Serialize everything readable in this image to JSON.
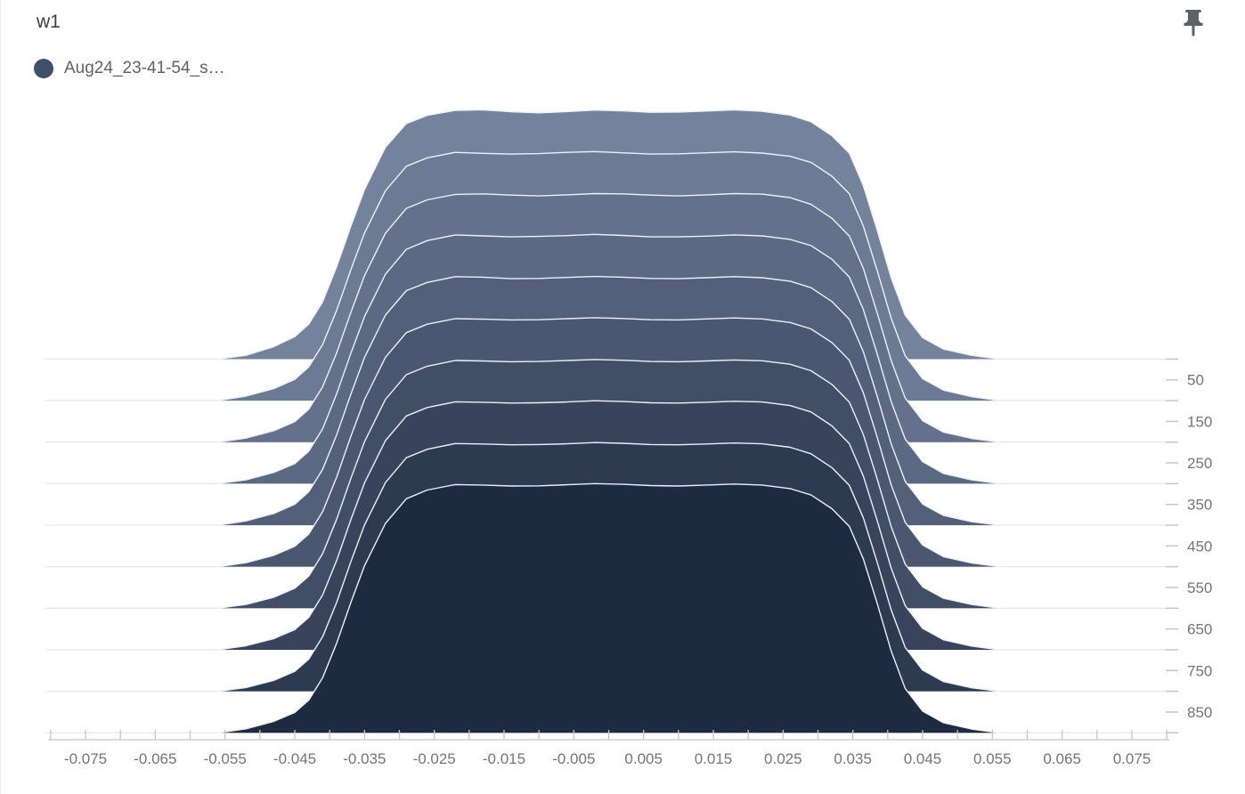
{
  "card": {
    "title": "w1"
  },
  "legend": {
    "run_label": "Aug24_23-41-54_s…",
    "run_color": "#40506B"
  },
  "icons": {
    "pin": "push-pin"
  },
  "chart_data": {
    "type": "ridgeline-histogram",
    "title": "w1",
    "xlabel": "",
    "ylabel": "",
    "legend_position": "top-left",
    "grid": "horizontal-baselines",
    "x_axis": {
      "min": -0.08,
      "max": 0.08,
      "minor_tick_step": 0.005,
      "tick_labels": [
        "-0.075",
        "-0.065",
        "-0.055",
        "-0.045",
        "-0.035",
        "-0.025",
        "-0.015",
        "-0.005",
        "0.005",
        "0.015",
        "0.025",
        "0.035",
        "0.045",
        "0.055",
        "0.065",
        "0.075"
      ]
    },
    "step_axis": {
      "side": "right",
      "tick_labels": [
        "50",
        "150",
        "250",
        "350",
        "450",
        "550",
        "650",
        "750",
        "850"
      ],
      "slice_steps": [
        0,
        100,
        200,
        300,
        400,
        500,
        600,
        700,
        800,
        900
      ]
    },
    "profile_x": [
      -0.056,
      -0.052,
      -0.048,
      -0.045,
      -0.043,
      -0.041,
      -0.039,
      -0.037,
      -0.035,
      -0.032,
      -0.029,
      -0.026,
      -0.022,
      -0.018,
      -0.014,
      -0.01,
      -0.006,
      -0.002,
      0.002,
      0.006,
      0.01,
      0.014,
      0.018,
      0.022,
      0.026,
      0.029,
      0.032,
      0.0345,
      0.0365,
      0.0385,
      0.0405,
      0.0425,
      0.045,
      0.048,
      0.052,
      0.056
    ],
    "slices": [
      {
        "step": 0,
        "heights": [
          0,
          0.015,
          0.05,
          0.09,
          0.14,
          0.23,
          0.37,
          0.53,
          0.68,
          0.85,
          0.945,
          0.978,
          0.998,
          1.0,
          0.992,
          0.988,
          0.993,
          0.999,
          0.996,
          0.99,
          0.991,
          0.995,
          1.0,
          0.994,
          0.979,
          0.952,
          0.896,
          0.826,
          0.696,
          0.516,
          0.326,
          0.176,
          0.086,
          0.04,
          0.015,
          0
        ]
      },
      {
        "step": 100,
        "heights": [
          0,
          0.018,
          0.048,
          0.085,
          0.135,
          0.225,
          0.362,
          0.522,
          0.672,
          0.842,
          0.94,
          0.974,
          0.996,
          0.992,
          0.989,
          0.991,
          0.996,
          0.999,
          0.994,
          0.989,
          0.99,
          0.994,
          0.998,
          0.993,
          0.98,
          0.956,
          0.9,
          0.83,
          0.7,
          0.52,
          0.33,
          0.18,
          0.088,
          0.042,
          0.016,
          0
        ]
      },
      {
        "step": 200,
        "heights": [
          0,
          0.016,
          0.046,
          0.082,
          0.132,
          0.222,
          0.358,
          0.518,
          0.668,
          0.838,
          0.938,
          0.972,
          0.994,
          0.996,
          0.991,
          0.988,
          0.992,
          0.997,
          0.996,
          0.991,
          0.988,
          0.992,
          0.997,
          0.995,
          0.981,
          0.954,
          0.898,
          0.827,
          0.697,
          0.517,
          0.327,
          0.177,
          0.086,
          0.04,
          0.015,
          0
        ]
      },
      {
        "step": 300,
        "heights": [
          0,
          0.015,
          0.045,
          0.08,
          0.13,
          0.22,
          0.36,
          0.52,
          0.67,
          0.84,
          0.94,
          0.975,
          0.998,
          0.994,
          0.99,
          0.992,
          0.995,
          1.0,
          0.996,
          0.99,
          0.99,
          0.993,
          0.998,
          0.994,
          0.98,
          0.955,
          0.9,
          0.829,
          0.699,
          0.519,
          0.329,
          0.179,
          0.088,
          0.041,
          0.015,
          0
        ]
      },
      {
        "step": 400,
        "heights": [
          0,
          0.017,
          0.047,
          0.084,
          0.134,
          0.224,
          0.362,
          0.523,
          0.673,
          0.843,
          0.941,
          0.974,
          0.997,
          0.995,
          0.989,
          0.99,
          0.994,
          0.998,
          0.995,
          0.99,
          0.989,
          0.993,
          0.997,
          0.993,
          0.979,
          0.953,
          0.897,
          0.826,
          0.696,
          0.516,
          0.326,
          0.176,
          0.085,
          0.039,
          0.014,
          0
        ]
      },
      {
        "step": 500,
        "heights": [
          0,
          0.016,
          0.046,
          0.082,
          0.131,
          0.221,
          0.359,
          0.52,
          0.67,
          0.84,
          0.939,
          0.973,
          0.995,
          0.993,
          0.99,
          0.991,
          0.995,
          0.999,
          0.996,
          0.991,
          0.99,
          0.994,
          0.998,
          0.994,
          0.98,
          0.954,
          0.899,
          0.828,
          0.698,
          0.518,
          0.328,
          0.178,
          0.087,
          0.04,
          0.015,
          0
        ]
      },
      {
        "step": 600,
        "heights": [
          0,
          0.015,
          0.044,
          0.08,
          0.129,
          0.219,
          0.357,
          0.518,
          0.668,
          0.838,
          0.937,
          0.971,
          0.994,
          0.992,
          0.989,
          0.99,
          0.994,
          0.998,
          0.995,
          0.99,
          0.989,
          0.992,
          0.996,
          0.993,
          0.979,
          0.953,
          0.898,
          0.827,
          0.697,
          0.517,
          0.327,
          0.177,
          0.086,
          0.04,
          0.015,
          0
        ]
      },
      {
        "step": 700,
        "heights": [
          0,
          0.016,
          0.045,
          0.081,
          0.13,
          0.22,
          0.358,
          0.519,
          0.669,
          0.839,
          0.938,
          0.972,
          0.995,
          0.993,
          0.99,
          0.991,
          0.994,
          0.999,
          0.996,
          0.991,
          0.99,
          0.993,
          0.997,
          0.994,
          0.98,
          0.954,
          0.898,
          0.827,
          0.697,
          0.517,
          0.327,
          0.177,
          0.086,
          0.04,
          0.015,
          0
        ]
      },
      {
        "step": 800,
        "heights": [
          0,
          0.015,
          0.044,
          0.08,
          0.129,
          0.219,
          0.356,
          0.517,
          0.667,
          0.837,
          0.937,
          0.971,
          0.994,
          0.992,
          0.989,
          0.99,
          0.993,
          0.998,
          0.995,
          0.99,
          0.989,
          0.992,
          0.996,
          0.993,
          0.979,
          0.953,
          0.897,
          0.826,
          0.696,
          0.516,
          0.326,
          0.176,
          0.085,
          0.039,
          0.014,
          0
        ]
      },
      {
        "step": 900,
        "heights": [
          0,
          0.016,
          0.046,
          0.082,
          0.131,
          0.221,
          0.359,
          0.52,
          0.67,
          0.84,
          0.939,
          0.974,
          0.996,
          0.994,
          0.99,
          0.991,
          0.995,
          1.0,
          0.997,
          0.992,
          0.99,
          0.994,
          0.998,
          0.994,
          0.98,
          0.954,
          0.899,
          0.828,
          0.698,
          0.518,
          0.328,
          0.178,
          0.087,
          0.04,
          0.015,
          0
        ]
      }
    ],
    "colors": [
      "#75829C",
      "#6D7A94",
      "#65718B",
      "#5C6982",
      "#545F79",
      "#4B5670",
      "#424D66",
      "#39445C",
      "#2E3A50",
      "#1E2A40"
    ],
    "outline_color": "#ECF1F7",
    "grid_color": "#E7E7E7",
    "tick_color": "#C6C6C6",
    "label_color": "#757575"
  }
}
